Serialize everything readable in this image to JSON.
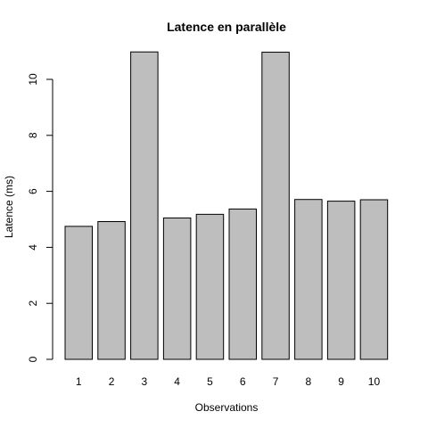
{
  "chart_data": {
    "type": "bar",
    "title": "Latence en parallèle",
    "xlabel": "Observations",
    "ylabel": "Latence (ms)",
    "categories": [
      "1",
      "2",
      "3",
      "4",
      "5",
      "6",
      "7",
      "8",
      "9",
      "10"
    ],
    "values": [
      4.75,
      4.92,
      10.98,
      5.05,
      5.18,
      5.37,
      10.97,
      5.71,
      5.65,
      5.7
    ],
    "ylim": [
      0,
      11.5
    ],
    "yticks": [
      "0",
      "2",
      "4",
      "6",
      "8",
      "10"
    ],
    "colors": {
      "bar_fill": "#bebebe",
      "bar_stroke": "#000000"
    },
    "grid": false,
    "legend": "none"
  }
}
